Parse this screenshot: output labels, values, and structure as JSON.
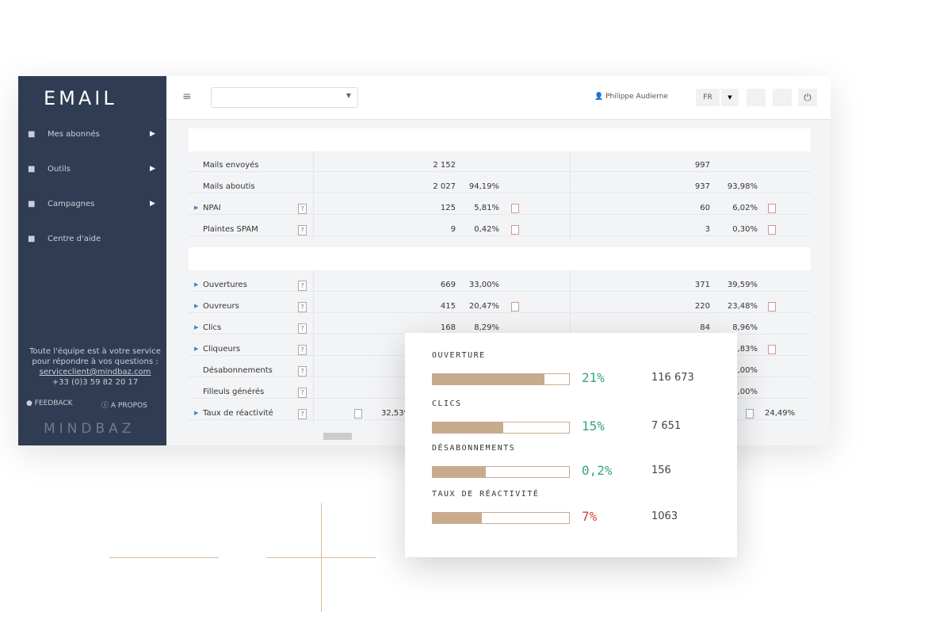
{
  "sidebar": {
    "logo": "EMAIL",
    "menu": [
      {
        "label": "Mes abonnés",
        "submenu": true
      },
      {
        "label": "Outils",
        "submenu": true
      },
      {
        "label": "Campagnes",
        "submenu": true
      },
      {
        "label": "Centre d'aide",
        "submenu": false
      }
    ],
    "help_lines": [
      "Toute l'équipe est à votre service",
      "pour répondre à vos questions :"
    ],
    "email": "serviceclient@mindbaz.com",
    "phone": "+33 (0)3 59 82 20 17",
    "feedback": "FEEDBACK",
    "about": "A PROPOS",
    "brand": "MINDBAZ"
  },
  "header": {
    "user": "Philippe Audierne",
    "lang": "FR"
  },
  "tables": [
    {
      "rows": [
        {
          "label": "Mails envoyés",
          "cells": [
            "2 152",
            null,
            "997",
            null
          ]
        },
        {
          "label": "Mails aboutis",
          "cells": [
            "2 027",
            "94,19%",
            "937",
            "93,98%"
          ]
        },
        {
          "label": "NPAI",
          "expand": true,
          "help": "?",
          "icon": true,
          "cells": [
            "125",
            "5,81%",
            "60",
            "6,02%"
          ]
        },
        {
          "label": "Plaintes SPAM",
          "help": "?",
          "icon": true,
          "cells": [
            "9",
            "0,42%",
            "3",
            "0,30%"
          ]
        }
      ]
    },
    {
      "rows": [
        {
          "label": "Ouvertures",
          "expand": true,
          "help": "?",
          "cells": [
            "669",
            "33,00%",
            "371",
            "39,59%"
          ]
        },
        {
          "label": "Ouvreurs",
          "expand": true,
          "help": "?",
          "icon": true,
          "cells": [
            "415",
            "20,47%",
            "220",
            "23,48%"
          ]
        },
        {
          "label": "Clics",
          "expand": true,
          "help": "?",
          "cells": [
            "168",
            "8,29%",
            "84",
            "8,96%"
          ]
        },
        {
          "label": "Cliqueurs",
          "expand": true,
          "help": "?",
          "icon": true,
          "cells": [
            null,
            null,
            null,
            ",83%"
          ]
        },
        {
          "label": "Désabonnements",
          "help": "?",
          "cells": [
            null,
            null,
            null,
            ",00%"
          ]
        },
        {
          "label": "Filleuls générés",
          "help": "?",
          "cells": [
            null,
            null,
            null,
            ",00%"
          ]
        },
        {
          "label": "Taux de réactivité",
          "expand": true,
          "help": "?",
          "icon": true,
          "cells": [
            null,
            "32,53%",
            null,
            "24,49%"
          ]
        }
      ]
    }
  ],
  "popup": {
    "items": [
      {
        "label": "OUVERTURE",
        "bar": 82,
        "percent": "21%",
        "count": "116 673",
        "color": "#3aa57a"
      },
      {
        "label": "CLICS",
        "bar": 52,
        "percent": "15%",
        "count": "7 651",
        "color": "#3aa57a"
      },
      {
        "label": "DÉSABONNEMENTS",
        "bar": 39,
        "percent": "0,2%",
        "count": "156",
        "color": "#3aa57a"
      },
      {
        "label": "TAUX DE RÉACTIVITÉ",
        "bar": 36,
        "percent": "7%",
        "count": "1063",
        "color": "#d2453f"
      }
    ]
  }
}
